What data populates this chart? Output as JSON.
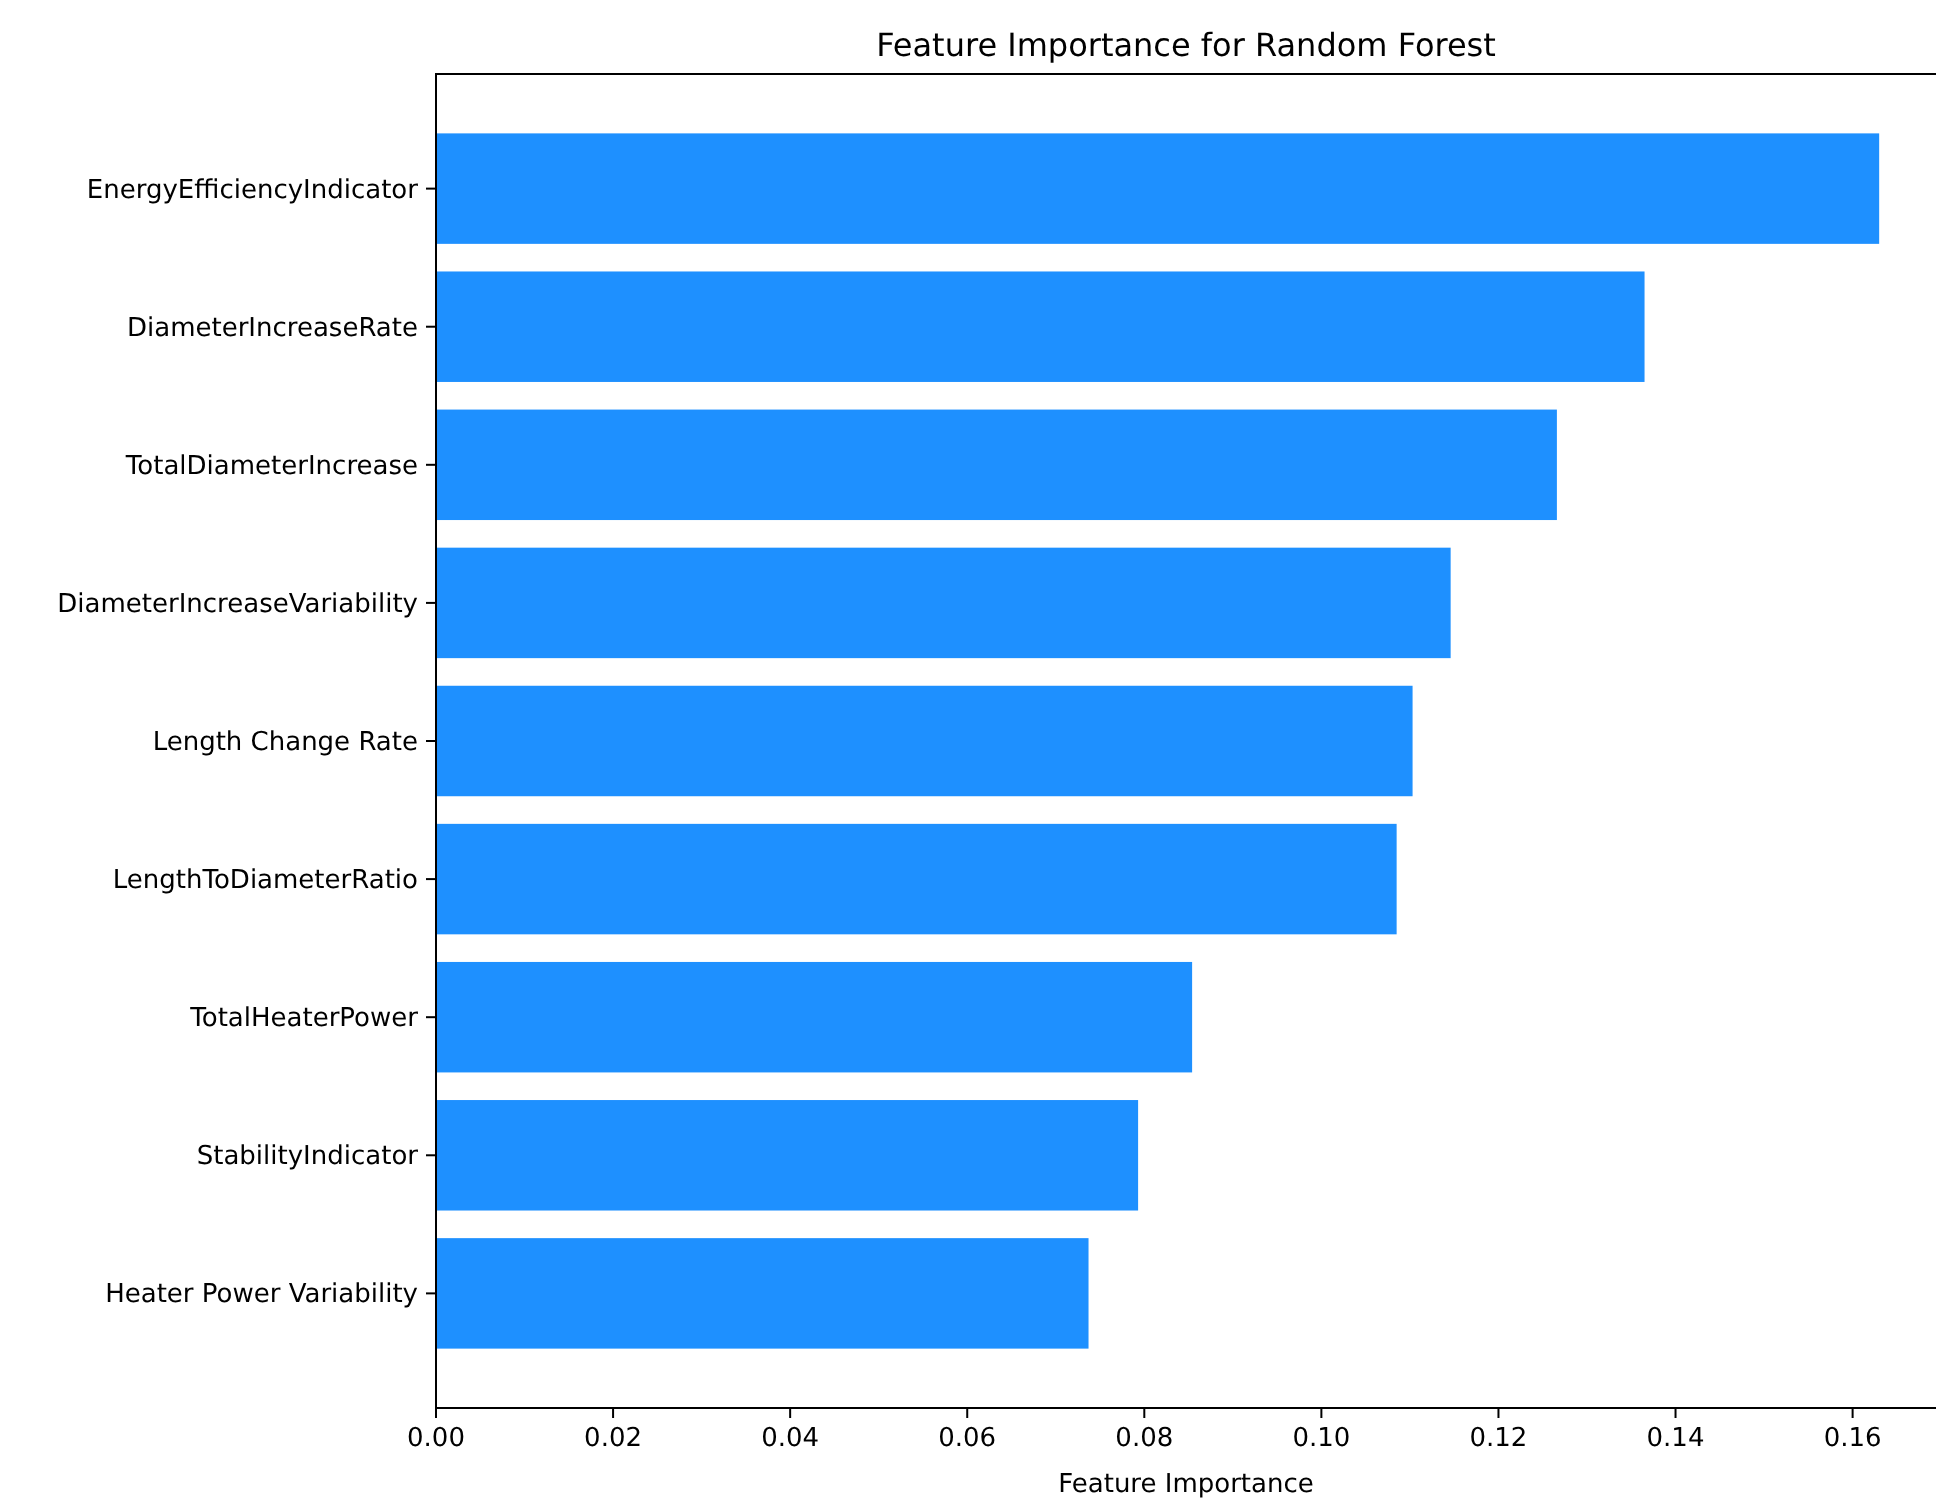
{
  "chart_data": {
    "type": "bar",
    "orientation": "horizontal",
    "title": "Feature Importance for Random Forest",
    "xlabel": "Feature Importance",
    "categories": [
      "EnergyEfficiencyIndicator",
      "DiameterIncreaseRate",
      "TotalDiameterIncrease",
      "DiameterIncreaseVariability",
      "Length Change Rate",
      "LengthToDiameterRatio",
      "TotalHeaterPower",
      "StabilityIndicator",
      "Heater Power Variability"
    ],
    "values": [
      0.163,
      0.1365,
      0.1266,
      0.1146,
      0.1103,
      0.1085,
      0.0854,
      0.0793,
      0.0737
    ],
    "color": "#1e90ff",
    "xlim": [
      0,
      0.171
    ],
    "xticks": [
      {
        "value": 0,
        "label": "0.00"
      },
      {
        "value": 0.02,
        "label": "0.02"
      },
      {
        "value": 0.04,
        "label": "0.04"
      },
      {
        "value": 0.06,
        "label": "0.06"
      },
      {
        "value": 0.08,
        "label": "0.08"
      },
      {
        "value": 0.1,
        "label": "0.10"
      },
      {
        "value": 0.12,
        "label": "0.12"
      },
      {
        "value": 0.14,
        "label": "0.14"
      },
      {
        "value": 0.16,
        "label": "0.16"
      }
    ],
    "grid": false
  }
}
